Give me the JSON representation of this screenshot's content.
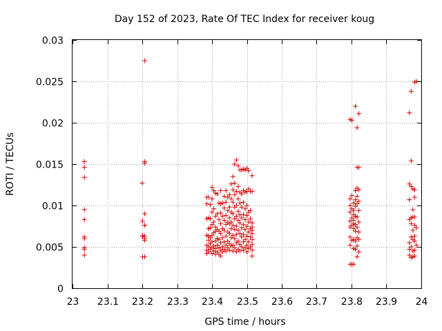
{
  "chart_data": {
    "type": "scatter",
    "title": "Day 152 of 2023, Rate Of TEC Index for receiver koug",
    "xlabel": "GPS time / hours",
    "ylabel": "ROTI / TECUs",
    "xlim": [
      23,
      24
    ],
    "ylim": [
      0,
      0.03
    ],
    "grid": true,
    "marker": "+",
    "marker_color": "#d40000",
    "x_ticks": [
      {
        "value": 23.0,
        "label": "23"
      },
      {
        "value": 23.1,
        "label": "23.1"
      },
      {
        "value": 23.2,
        "label": "23.2"
      },
      {
        "value": 23.3,
        "label": "23.3"
      },
      {
        "value": 23.4,
        "label": "23.4"
      },
      {
        "value": 23.5,
        "label": "23.5"
      },
      {
        "value": 23.6,
        "label": "23.6"
      },
      {
        "value": 23.7,
        "label": "23.7"
      },
      {
        "value": 23.8,
        "label": "23.8"
      },
      {
        "value": 23.9,
        "label": "23.9"
      },
      {
        "value": 24.0,
        "label": "24"
      }
    ],
    "y_ticks": [
      {
        "value": 0,
        "label": "0"
      },
      {
        "value": 0.005,
        "label": "0.005"
      },
      {
        "value": 0.01,
        "label": "0.01"
      },
      {
        "value": 0.015,
        "label": "0.015"
      },
      {
        "value": 0.02,
        "label": "0.02"
      },
      {
        "value": 0.025,
        "label": "0.025"
      },
      {
        "value": 0.03,
        "label": "0.03"
      }
    ],
    "points": [
      [
        23.034,
        0.0153
      ],
      [
        23.034,
        0.0146
      ],
      [
        23.034,
        0.0134
      ],
      [
        23.034,
        0.0095
      ],
      [
        23.034,
        0.0083
      ],
      [
        23.034,
        0.0062
      ],
      [
        23.034,
        0.006
      ],
      [
        23.034,
        0.0049
      ],
      [
        23.034,
        0.0047
      ],
      [
        23.034,
        0.004
      ],
      [
        23.2,
        0.0127
      ],
      [
        23.201,
        0.0081
      ],
      [
        23.201,
        0.0064
      ],
      [
        23.201,
        0.0062
      ],
      [
        23.201,
        0.0038
      ],
      [
        23.207,
        0.0275
      ],
      [
        23.207,
        0.0153
      ],
      [
        23.207,
        0.0151
      ],
      [
        23.207,
        0.009
      ],
      [
        23.207,
        0.0076
      ],
      [
        23.207,
        0.0076
      ],
      [
        23.207,
        0.0063
      ],
      [
        23.207,
        0.006
      ],
      [
        23.207,
        0.0058
      ],
      [
        23.207,
        0.0038
      ],
      [
        23.385,
        0.011
      ],
      [
        23.385,
        0.0102
      ],
      [
        23.385,
        0.0084
      ],
      [
        23.385,
        0.0064
      ],
      [
        23.385,
        0.0052
      ],
      [
        23.385,
        0.0046
      ],
      [
        23.385,
        0.0042
      ],
      [
        23.39,
        0.011
      ],
      [
        23.39,
        0.0085
      ],
      [
        23.39,
        0.0072
      ],
      [
        23.39,
        0.0063
      ],
      [
        23.39,
        0.0058
      ],
      [
        23.39,
        0.005
      ],
      [
        23.39,
        0.0044
      ],
      [
        23.395,
        0.0101
      ],
      [
        23.395,
        0.0084
      ],
      [
        23.395,
        0.0073
      ],
      [
        23.395,
        0.0061
      ],
      [
        23.395,
        0.0054
      ],
      [
        23.395,
        0.0047
      ],
      [
        23.4,
        0.0122
      ],
      [
        23.4,
        0.0108
      ],
      [
        23.4,
        0.0092
      ],
      [
        23.4,
        0.0077
      ],
      [
        23.4,
        0.0064
      ],
      [
        23.4,
        0.0056
      ],
      [
        23.4,
        0.0049
      ],
      [
        23.4,
        0.0042
      ],
      [
        23.405,
        0.0118
      ],
      [
        23.405,
        0.0096
      ],
      [
        23.405,
        0.008
      ],
      [
        23.405,
        0.0067
      ],
      [
        23.405,
        0.0051
      ],
      [
        23.405,
        0.0045
      ],
      [
        23.41,
        0.0115
      ],
      [
        23.41,
        0.0087
      ],
      [
        23.41,
        0.0074
      ],
      [
        23.41,
        0.0069
      ],
      [
        23.41,
        0.0057
      ],
      [
        23.41,
        0.0048
      ],
      [
        23.41,
        0.0041
      ],
      [
        23.415,
        0.0114
      ],
      [
        23.415,
        0.009
      ],
      [
        23.415,
        0.0071
      ],
      [
        23.415,
        0.006
      ],
      [
        23.415,
        0.0052
      ],
      [
        23.415,
        0.0044
      ],
      [
        23.42,
        0.0103
      ],
      [
        23.42,
        0.0083
      ],
      [
        23.42,
        0.0069
      ],
      [
        23.42,
        0.0059
      ],
      [
        23.42,
        0.0049
      ],
      [
        23.42,
        0.0041
      ],
      [
        23.425,
        0.0118
      ],
      [
        23.425,
        0.0102
      ],
      [
        23.425,
        0.0091
      ],
      [
        23.425,
        0.0078
      ],
      [
        23.425,
        0.0066
      ],
      [
        23.425,
        0.0055
      ],
      [
        23.425,
        0.0046
      ],
      [
        23.425,
        0.0039
      ],
      [
        23.43,
        0.0103
      ],
      [
        23.43,
        0.0087
      ],
      [
        23.43,
        0.0072
      ],
      [
        23.43,
        0.0061
      ],
      [
        23.43,
        0.005
      ],
      [
        23.43,
        0.0044
      ],
      [
        23.435,
        0.0111
      ],
      [
        23.435,
        0.0097
      ],
      [
        23.435,
        0.0082
      ],
      [
        23.435,
        0.007
      ],
      [
        23.435,
        0.0056
      ],
      [
        23.435,
        0.0047
      ],
      [
        23.44,
        0.0118
      ],
      [
        23.44,
        0.0104
      ],
      [
        23.44,
        0.0088
      ],
      [
        23.44,
        0.0077
      ],
      [
        23.44,
        0.0063
      ],
      [
        23.44,
        0.0052
      ],
      [
        23.44,
        0.0045
      ],
      [
        23.445,
        0.011
      ],
      [
        23.445,
        0.0094
      ],
      [
        23.445,
        0.008
      ],
      [
        23.445,
        0.0068
      ],
      [
        23.445,
        0.0057
      ],
      [
        23.445,
        0.0049
      ],
      [
        23.45,
        0.0113
      ],
      [
        23.45,
        0.0098
      ],
      [
        23.45,
        0.0085
      ],
      [
        23.45,
        0.0078
      ],
      [
        23.45,
        0.0066
      ],
      [
        23.45,
        0.0054
      ],
      [
        23.45,
        0.0046
      ],
      [
        23.455,
        0.0126
      ],
      [
        23.455,
        0.0108
      ],
      [
        23.455,
        0.0092
      ],
      [
        23.455,
        0.008
      ],
      [
        23.455,
        0.0072
      ],
      [
        23.455,
        0.0061
      ],
      [
        23.455,
        0.0051
      ],
      [
        23.46,
        0.0135
      ],
      [
        23.46,
        0.0119
      ],
      [
        23.46,
        0.0104
      ],
      [
        23.46,
        0.009
      ],
      [
        23.46,
        0.0076
      ],
      [
        23.46,
        0.0064
      ],
      [
        23.46,
        0.0052
      ],
      [
        23.46,
        0.0045
      ],
      [
        23.465,
        0.015
      ],
      [
        23.465,
        0.0127
      ],
      [
        23.465,
        0.0113
      ],
      [
        23.465,
        0.0098
      ],
      [
        23.465,
        0.0084
      ],
      [
        23.465,
        0.0071
      ],
      [
        23.465,
        0.006
      ],
      [
        23.465,
        0.0049
      ],
      [
        23.47,
        0.0155
      ],
      [
        23.47,
        0.0117
      ],
      [
        23.47,
        0.01
      ],
      [
        23.47,
        0.0087
      ],
      [
        23.47,
        0.0075
      ],
      [
        23.47,
        0.0065
      ],
      [
        23.47,
        0.0055
      ],
      [
        23.47,
        0.0044
      ],
      [
        23.475,
        0.0148
      ],
      [
        23.475,
        0.0123
      ],
      [
        23.475,
        0.0108
      ],
      [
        23.475,
        0.0093
      ],
      [
        23.475,
        0.0082
      ],
      [
        23.475,
        0.007
      ],
      [
        23.475,
        0.0057
      ],
      [
        23.475,
        0.0047
      ],
      [
        23.48,
        0.0143
      ],
      [
        23.48,
        0.0116
      ],
      [
        23.48,
        0.0103
      ],
      [
        23.48,
        0.0089
      ],
      [
        23.48,
        0.0079
      ],
      [
        23.48,
        0.0066
      ],
      [
        23.48,
        0.0053
      ],
      [
        23.48,
        0.0045
      ],
      [
        23.485,
        0.0143
      ],
      [
        23.485,
        0.0114
      ],
      [
        23.485,
        0.0098
      ],
      [
        23.485,
        0.0085
      ],
      [
        23.485,
        0.0073
      ],
      [
        23.485,
        0.0062
      ],
      [
        23.485,
        0.005
      ],
      [
        23.49,
        0.0144
      ],
      [
        23.49,
        0.0118
      ],
      [
        23.49,
        0.0104
      ],
      [
        23.49,
        0.0089
      ],
      [
        23.49,
        0.0077
      ],
      [
        23.49,
        0.0065
      ],
      [
        23.49,
        0.0056
      ],
      [
        23.49,
        0.0046
      ],
      [
        23.495,
        0.0143
      ],
      [
        23.495,
        0.0116
      ],
      [
        23.495,
        0.0096
      ],
      [
        23.495,
        0.0083
      ],
      [
        23.495,
        0.0071
      ],
      [
        23.495,
        0.0059
      ],
      [
        23.495,
        0.0049
      ],
      [
        23.5,
        0.0145
      ],
      [
        23.5,
        0.0117
      ],
      [
        23.5,
        0.01
      ],
      [
        23.5,
        0.0088
      ],
      [
        23.5,
        0.0075
      ],
      [
        23.5,
        0.0063
      ],
      [
        23.5,
        0.0052
      ],
      [
        23.5,
        0.0044
      ],
      [
        23.505,
        0.0142
      ],
      [
        23.505,
        0.012
      ],
      [
        23.505,
        0.0092
      ],
      [
        23.505,
        0.008
      ],
      [
        23.505,
        0.0068
      ],
      [
        23.505,
        0.0056
      ],
      [
        23.505,
        0.0048
      ],
      [
        23.51,
        0.0117
      ],
      [
        23.51,
        0.0094
      ],
      [
        23.51,
        0.0084
      ],
      [
        23.51,
        0.0072
      ],
      [
        23.51,
        0.0062
      ],
      [
        23.51,
        0.005
      ],
      [
        23.515,
        0.0136
      ],
      [
        23.515,
        0.0117
      ],
      [
        23.515,
        0.0079
      ],
      [
        23.515,
        0.0074
      ],
      [
        23.515,
        0.007
      ],
      [
        23.515,
        0.0066
      ],
      [
        23.515,
        0.0059
      ],
      [
        23.515,
        0.0053
      ],
      [
        23.515,
        0.0046
      ],
      [
        23.515,
        0.0039
      ],
      [
        23.796,
        0.0204
      ],
      [
        23.796,
        0.0108
      ],
      [
        23.796,
        0.01
      ],
      [
        23.796,
        0.0092
      ],
      [
        23.796,
        0.0081
      ],
      [
        23.796,
        0.0074
      ],
      [
        23.796,
        0.0062
      ],
      [
        23.796,
        0.0052
      ],
      [
        23.796,
        0.0029
      ],
      [
        23.801,
        0.0203
      ],
      [
        23.801,
        0.0112
      ],
      [
        23.801,
        0.0096
      ],
      [
        23.801,
        0.0085
      ],
      [
        23.801,
        0.0076
      ],
      [
        23.801,
        0.0058
      ],
      [
        23.801,
        0.0029
      ],
      [
        23.806,
        0.0103
      ],
      [
        23.806,
        0.0094
      ],
      [
        23.806,
        0.0089
      ],
      [
        23.806,
        0.0082
      ],
      [
        23.806,
        0.0078
      ],
      [
        23.806,
        0.0072
      ],
      [
        23.806,
        0.0059
      ],
      [
        23.806,
        0.0048
      ],
      [
        23.806,
        0.0029
      ],
      [
        23.811,
        0.022
      ],
      [
        23.811,
        0.0118
      ],
      [
        23.811,
        0.0107
      ],
      [
        23.811,
        0.0099
      ],
      [
        23.811,
        0.0087
      ],
      [
        23.811,
        0.0077
      ],
      [
        23.811,
        0.0069
      ],
      [
        23.811,
        0.0057
      ],
      [
        23.811,
        0.0047
      ],
      [
        23.816,
        0.0194
      ],
      [
        23.816,
        0.0146
      ],
      [
        23.816,
        0.0121
      ],
      [
        23.816,
        0.0111
      ],
      [
        23.816,
        0.0102
      ],
      [
        23.816,
        0.0086
      ],
      [
        23.816,
        0.0074
      ],
      [
        23.816,
        0.0061
      ],
      [
        23.816,
        0.0051
      ],
      [
        23.816,
        0.0038
      ],
      [
        23.821,
        0.0211
      ],
      [
        23.821,
        0.0146
      ],
      [
        23.821,
        0.0119
      ],
      [
        23.821,
        0.0105
      ],
      [
        23.821,
        0.0094
      ],
      [
        23.821,
        0.008
      ],
      [
        23.821,
        0.0068
      ],
      [
        23.821,
        0.0059
      ],
      [
        23.821,
        0.0044
      ],
      [
        23.966,
        0.0212
      ],
      [
        23.966,
        0.0126
      ],
      [
        23.966,
        0.0107
      ],
      [
        23.966,
        0.0083
      ],
      [
        23.966,
        0.0055
      ],
      [
        23.966,
        0.0047
      ],
      [
        23.966,
        0.004
      ],
      [
        23.971,
        0.0238
      ],
      [
        23.971,
        0.0154
      ],
      [
        23.971,
        0.0123
      ],
      [
        23.971,
        0.0085
      ],
      [
        23.971,
        0.0078
      ],
      [
        23.971,
        0.0062
      ],
      [
        23.971,
        0.005
      ],
      [
        23.971,
        0.0037
      ],
      [
        23.976,
        0.012
      ],
      [
        23.976,
        0.0095
      ],
      [
        23.976,
        0.0086
      ],
      [
        23.976,
        0.007
      ],
      [
        23.976,
        0.0059
      ],
      [
        23.976,
        0.0045
      ],
      [
        23.976,
        0.0038
      ],
      [
        23.981,
        0.0249
      ],
      [
        23.981,
        0.0119
      ],
      [
        23.981,
        0.011
      ],
      [
        23.981,
        0.0086
      ],
      [
        23.981,
        0.0076
      ],
      [
        23.981,
        0.0063
      ],
      [
        23.981,
        0.0057
      ],
      [
        23.981,
        0.0046
      ],
      [
        23.981,
        0.0039
      ],
      [
        23.986,
        0.025
      ],
      [
        23.986,
        0.0073
      ],
      [
        23.986,
        0.0052
      ]
    ]
  }
}
